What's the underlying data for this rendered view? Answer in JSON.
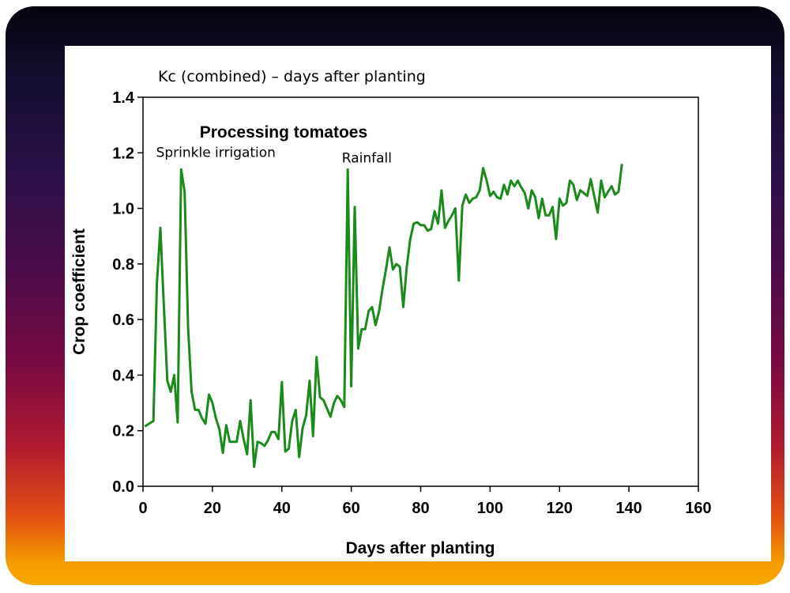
{
  "chart_data": {
    "type": "line",
    "title": "Kc (combined) – days after planting",
    "xlabel": "Days after planting",
    "ylabel": "Crop coefficient",
    "xlim": [
      0,
      160
    ],
    "ylim": [
      0,
      1.4
    ],
    "xticks": [
      "0",
      "20",
      "40",
      "60",
      "80",
      "100",
      "120",
      "140",
      "160"
    ],
    "yticks": [
      "0.0",
      "0.2",
      "0.4",
      "0.6",
      "0.8",
      "1.0",
      "1.2",
      "1.4"
    ],
    "grid": false,
    "annotations": [
      {
        "text": "Processing tomatoes",
        "x": 40.5,
        "y": 1.255,
        "style": "bold"
      },
      {
        "text": "Sprinkle irrigation",
        "x": 21,
        "y": 1.185,
        "style": "normal"
      },
      {
        "text": "Rainfall",
        "x": 64.5,
        "y": 1.165,
        "style": "normal"
      }
    ],
    "series": [
      {
        "color": "#1a8a1a",
        "points": [
          [
            0.5,
            0.215
          ],
          [
            3,
            0.235
          ],
          [
            4,
            0.73
          ],
          [
            5,
            0.93
          ],
          [
            6,
            0.65
          ],
          [
            7,
            0.38
          ],
          [
            8,
            0.34
          ],
          [
            9,
            0.4
          ],
          [
            10,
            0.23
          ],
          [
            11,
            1.14
          ],
          [
            12,
            1.06
          ],
          [
            13,
            0.57
          ],
          [
            14,
            0.34
          ],
          [
            15,
            0.275
          ],
          [
            16,
            0.275
          ],
          [
            17,
            0.245
          ],
          [
            18,
            0.225
          ],
          [
            19,
            0.33
          ],
          [
            20,
            0.3
          ],
          [
            21,
            0.245
          ],
          [
            22,
            0.205
          ],
          [
            23,
            0.12
          ],
          [
            24,
            0.22
          ],
          [
            25,
            0.16
          ],
          [
            26,
            0.16
          ],
          [
            27,
            0.16
          ],
          [
            28,
            0.235
          ],
          [
            29,
            0.17
          ],
          [
            30,
            0.115
          ],
          [
            31,
            0.31
          ],
          [
            32,
            0.07
          ],
          [
            33,
            0.16
          ],
          [
            34,
            0.155
          ],
          [
            35,
            0.145
          ],
          [
            36,
            0.165
          ],
          [
            37,
            0.195
          ],
          [
            38,
            0.195
          ],
          [
            39,
            0.17
          ],
          [
            40,
            0.375
          ],
          [
            41,
            0.125
          ],
          [
            42,
            0.135
          ],
          [
            43,
            0.235
          ],
          [
            44,
            0.275
          ],
          [
            45,
            0.105
          ],
          [
            46,
            0.21
          ],
          [
            47,
            0.255
          ],
          [
            48,
            0.38
          ],
          [
            49,
            0.18
          ],
          [
            50,
            0.465
          ],
          [
            51,
            0.32
          ],
          [
            52,
            0.31
          ],
          [
            53,
            0.28
          ],
          [
            54,
            0.25
          ],
          [
            55,
            0.3
          ],
          [
            56,
            0.325
          ],
          [
            57,
            0.31
          ],
          [
            58,
            0.285
          ],
          [
            59,
            1.14
          ],
          [
            60,
            0.36
          ],
          [
            61,
            1.005
          ],
          [
            62,
            0.495
          ],
          [
            63,
            0.565
          ],
          [
            64,
            0.565
          ],
          [
            65,
            0.63
          ],
          [
            66,
            0.645
          ],
          [
            67,
            0.58
          ],
          [
            68,
            0.63
          ],
          [
            69,
            0.71
          ],
          [
            70,
            0.78
          ],
          [
            71,
            0.86
          ],
          [
            72,
            0.78
          ],
          [
            73,
            0.8
          ],
          [
            74,
            0.79
          ],
          [
            75,
            0.645
          ],
          [
            76,
            0.79
          ],
          [
            77,
            0.89
          ],
          [
            78,
            0.945
          ],
          [
            79,
            0.95
          ],
          [
            80,
            0.94
          ],
          [
            81,
            0.94
          ],
          [
            82,
            0.92
          ],
          [
            83,
            0.925
          ],
          [
            84,
            0.99
          ],
          [
            85,
            0.945
          ],
          [
            86,
            1.065
          ],
          [
            87,
            0.93
          ],
          [
            88,
            0.955
          ],
          [
            89,
            0.975
          ],
          [
            90,
            1.0
          ],
          [
            91,
            0.74
          ],
          [
            92,
            1.01
          ],
          [
            93,
            1.05
          ],
          [
            94,
            1.02
          ],
          [
            95,
            1.035
          ],
          [
            96,
            1.04
          ],
          [
            97,
            1.065
          ],
          [
            98,
            1.145
          ],
          [
            99,
            1.1
          ],
          [
            100,
            1.045
          ],
          [
            101,
            1.06
          ],
          [
            102,
            1.04
          ],
          [
            103,
            1.035
          ],
          [
            104,
            1.085
          ],
          [
            105,
            1.05
          ],
          [
            106,
            1.1
          ],
          [
            107,
            1.08
          ],
          [
            108,
            1.1
          ],
          [
            109,
            1.075
          ],
          [
            110,
            1.055
          ],
          [
            111,
            1.0
          ],
          [
            112,
            1.065
          ],
          [
            113,
            1.04
          ],
          [
            114,
            0.965
          ],
          [
            115,
            1.035
          ],
          [
            116,
            0.975
          ],
          [
            117,
            0.975
          ],
          [
            118,
            1.005
          ],
          [
            119,
            0.89
          ],
          [
            120,
            1.035
          ],
          [
            121,
            1.01
          ],
          [
            122,
            1.02
          ],
          [
            123,
            1.1
          ],
          [
            124,
            1.085
          ],
          [
            125,
            1.03
          ],
          [
            126,
            1.065
          ],
          [
            127,
            1.055
          ],
          [
            128,
            1.045
          ],
          [
            129,
            1.105
          ],
          [
            130,
            1.045
          ],
          [
            131,
            0.985
          ],
          [
            132,
            1.1
          ],
          [
            133,
            1.04
          ],
          [
            134,
            1.06
          ],
          [
            135,
            1.08
          ],
          [
            136,
            1.05
          ],
          [
            137,
            1.06
          ],
          [
            138,
            1.16
          ]
        ]
      }
    ]
  }
}
